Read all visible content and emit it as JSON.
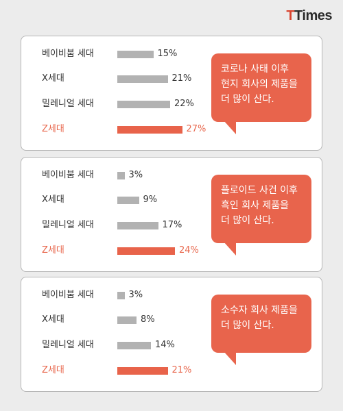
{
  "logo": {
    "part1": "T",
    "part2": "Times"
  },
  "colors": {
    "highlight": "#e8634a",
    "bar": "#b2b2b2"
  },
  "chart_data": [
    {
      "type": "bar",
      "orientation": "horizontal",
      "categories": [
        "베이비붐 세대",
        "X세대",
        "밀레니얼 세대",
        "Z세대"
      ],
      "values": [
        15,
        21,
        22,
        27
      ],
      "value_labels": [
        "15%",
        "21%",
        "22%",
        "27%"
      ],
      "highlight_index": 3,
      "annotation": [
        "코로나 사태 이후",
        "현지 회사의 제품을",
        "더 많이 산다."
      ]
    },
    {
      "type": "bar",
      "orientation": "horizontal",
      "categories": [
        "베이비붐 세대",
        "X세대",
        "밀레니얼 세대",
        "Z세대"
      ],
      "values": [
        3,
        9,
        17,
        24
      ],
      "value_labels": [
        "3%",
        "9%",
        "17%",
        "24%"
      ],
      "highlight_index": 3,
      "annotation": [
        "플로이드 사건 이후",
        "흑인 회사 제품을",
        "더 많이 산다."
      ]
    },
    {
      "type": "bar",
      "orientation": "horizontal",
      "categories": [
        "베이비붐 세대",
        "X세대",
        "밀레니얼 세대",
        "Z세대"
      ],
      "values": [
        3,
        8,
        14,
        21
      ],
      "value_labels": [
        "3%",
        "8%",
        "14%",
        "21%"
      ],
      "highlight_index": 3,
      "annotation": [
        "소수자 회사 제품을",
        "더 많이 산다."
      ]
    }
  ]
}
